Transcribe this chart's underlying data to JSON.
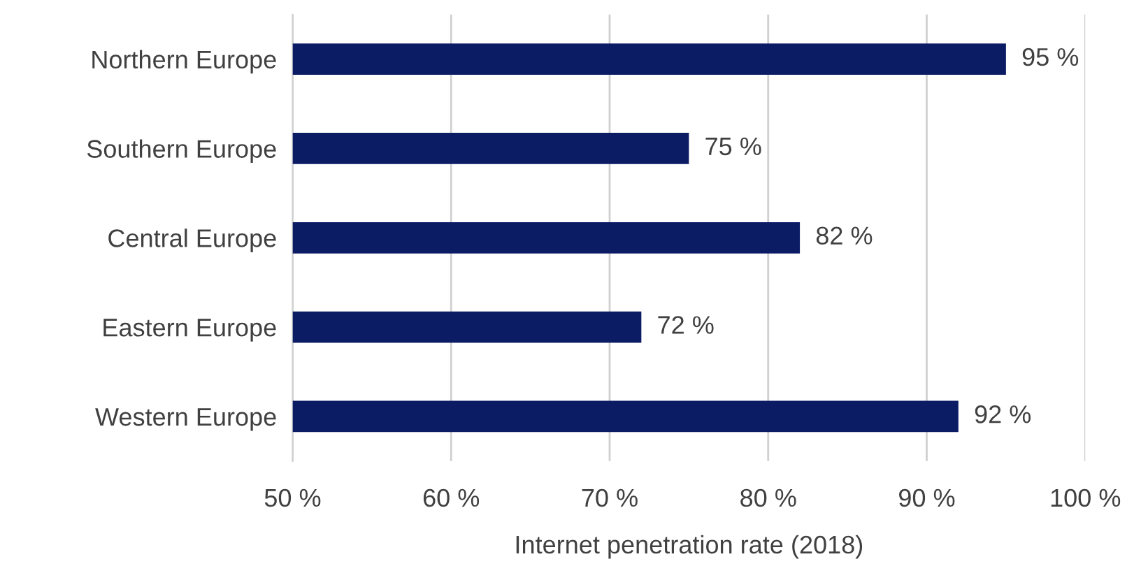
{
  "chart_data": {
    "type": "bar",
    "orientation": "horizontal",
    "xlabel": "Internet penetration rate (2018)",
    "categories": [
      "Northern Europe",
      "Southern Europe",
      "Central Europe",
      "Eastern Europe",
      "Western Europe"
    ],
    "values": [
      95,
      75,
      82,
      72,
      92
    ],
    "value_labels": [
      "95 %",
      "75 %",
      "82 %",
      "72 %",
      "92 %"
    ],
    "color": "#0c1c64",
    "xlim": [
      50,
      100
    ],
    "xticks": [
      {
        "value": 50,
        "label": "50 %"
      },
      {
        "value": 60,
        "label": "60 %"
      },
      {
        "value": 70,
        "label": "70 %"
      },
      {
        "value": 80,
        "label": "80 %"
      },
      {
        "value": 90,
        "label": "90 %"
      },
      {
        "value": 100,
        "label": "100 %"
      }
    ],
    "grid": "x",
    "legend": false
  }
}
